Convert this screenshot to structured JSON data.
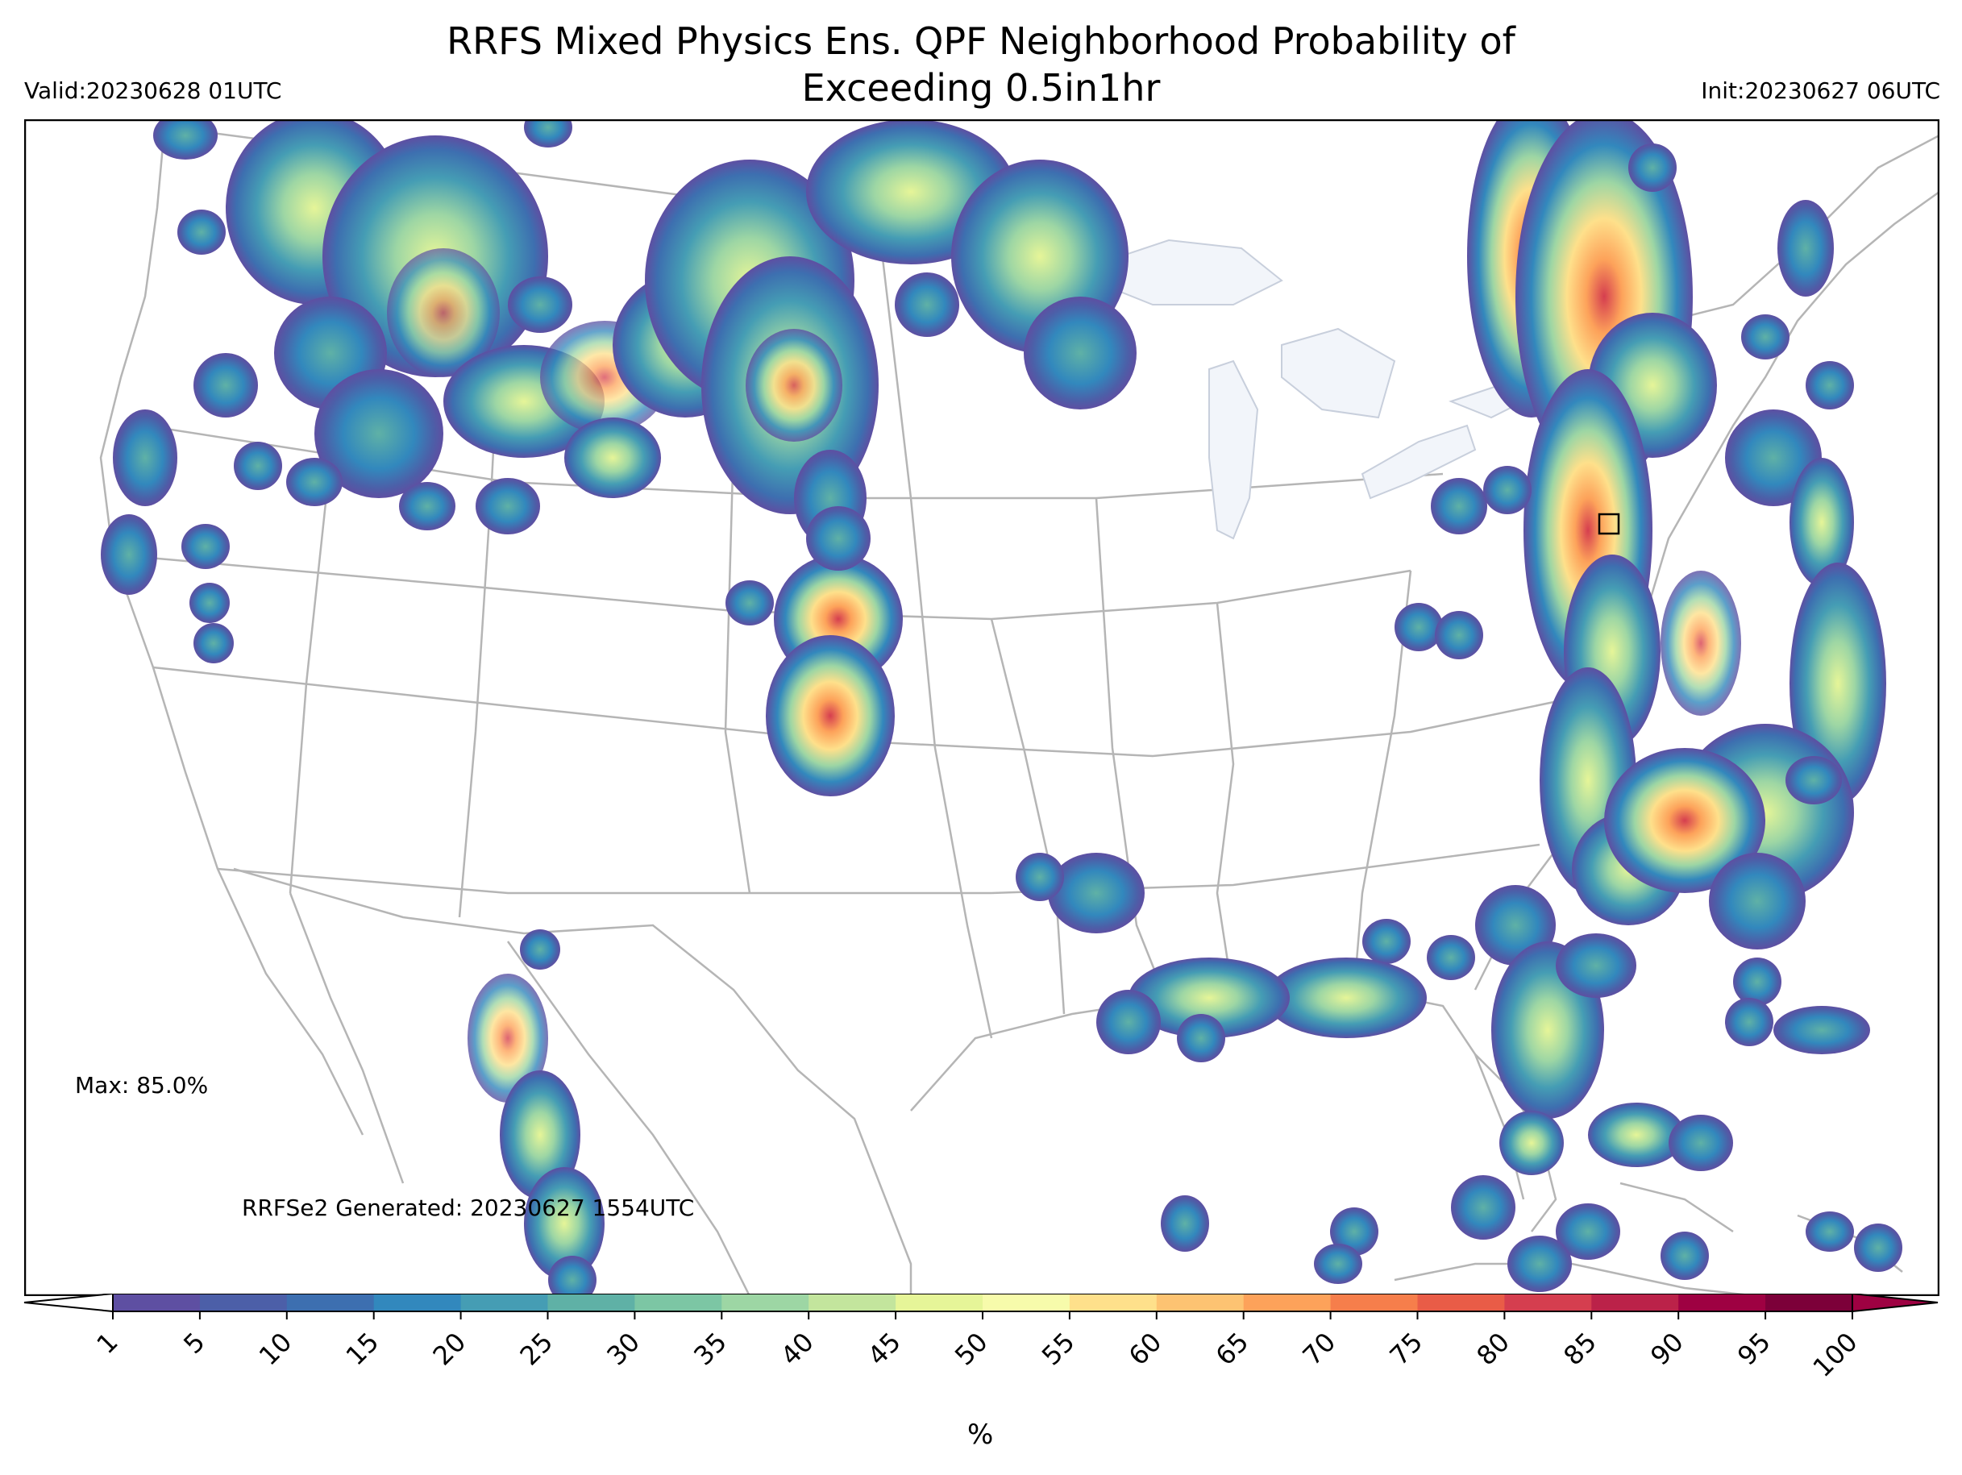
{
  "header": {
    "title_line1": "RRFS Mixed Physics Ens. QPF Neighborhood Probability of",
    "title_line2": "Exceeding 0.5in1hr",
    "valid": "Valid:20230628 01UTC",
    "init": "Init:20230627 06UTC"
  },
  "annotations": {
    "max": "Max: 85.0%",
    "generated": "RRFSe2 Generated: 20230627 1554UTC"
  },
  "colorbar": {
    "unit": "%",
    "ticks": [
      "1",
      "5",
      "10",
      "15",
      "20",
      "25",
      "30",
      "35",
      "40",
      "45",
      "50",
      "55",
      "60",
      "65",
      "70",
      "75",
      "80",
      "85",
      "90",
      "95",
      "100"
    ],
    "colors": [
      "#5e4fa2",
      "#4c5fa8",
      "#3d6fb0",
      "#3288bd",
      "#459db4",
      "#5fb1a6",
      "#7cc6a4",
      "#9dd6a4",
      "#c3e59d",
      "#e6f598",
      "#f7fbab",
      "#fee08b",
      "#fdc372",
      "#fda25a",
      "#f67e4b",
      "#e95c47",
      "#d53e4f",
      "#bb2249",
      "#9e0142",
      "#7c0039"
    ],
    "under_color": "#ffffff",
    "over_color": "#9e0142"
  },
  "map_colors": {
    "land": "#ffffff",
    "borders": "#b5b5b5",
    "lakes": "#f2f5fa"
  }
}
